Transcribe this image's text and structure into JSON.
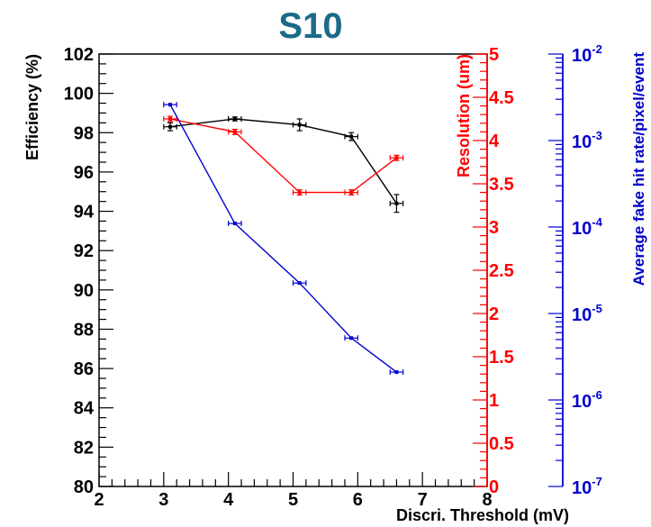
{
  "chart_data": {
    "type": "line",
    "title": "S10",
    "xlabel": "Discri. Threshold (mV)",
    "xlim": [
      2,
      8
    ],
    "xticks": [
      "2",
      "3",
      "4",
      "5",
      "6",
      "7",
      "8"
    ],
    "axes": {
      "left": {
        "label": "Efficiency (%)",
        "color": "#000000",
        "range": [
          80,
          102
        ],
        "ticks": [
          "80",
          "82",
          "84",
          "86",
          "88",
          "90",
          "92",
          "94",
          "96",
          "98",
          "100",
          "102"
        ]
      },
      "right1": {
        "label": "Resolution (um)",
        "color": "#ff0000",
        "range": [
          0,
          5
        ],
        "ticks": [
          "0",
          "0.5",
          "1",
          "1.5",
          "2",
          "2.5",
          "3",
          "3.5",
          "4",
          "4.5",
          "5"
        ]
      },
      "right2": {
        "label": "Average fake hit rate/pixel/event",
        "color": "#0000cc",
        "scale": "log",
        "range": [
          1e-07,
          0.01
        ],
        "ticks": [
          {
            "base": "10",
            "exp": "-7"
          },
          {
            "base": "10",
            "exp": "-6"
          },
          {
            "base": "10",
            "exp": "-5"
          },
          {
            "base": "10",
            "exp": "-4"
          },
          {
            "base": "10",
            "exp": "-3"
          },
          {
            "base": "10",
            "exp": "-2"
          }
        ]
      }
    },
    "series": [
      {
        "axis": "left",
        "color": "#000000",
        "x": [
          3.1,
          4.1,
          5.1,
          5.9,
          6.6
        ],
        "y": [
          98.3,
          98.7,
          98.4,
          97.8,
          94.4
        ],
        "xerr": 0.1,
        "yerr": [
          0.2,
          0.1,
          0.3,
          0.2,
          0.45
        ]
      },
      {
        "axis": "right1",
        "color": "#ff0000",
        "x": [
          3.1,
          4.1,
          5.1,
          5.9,
          6.6
        ],
        "y": [
          4.25,
          4.1,
          3.4,
          3.4,
          3.8
        ],
        "xerr": 0.1,
        "yerr": [
          0.03,
          0.03,
          0.03,
          0.03,
          0.03
        ]
      },
      {
        "axis": "right2",
        "color": "#0000cc",
        "x": [
          3.1,
          4.1,
          5.1,
          5.9,
          6.6
        ],
        "y": [
          0.0026,
          0.00011,
          2.25e-05,
          5.2e-06,
          2.1e-06
        ],
        "xerr": 0.1
      }
    ],
    "grid": false,
    "legend": "none"
  }
}
